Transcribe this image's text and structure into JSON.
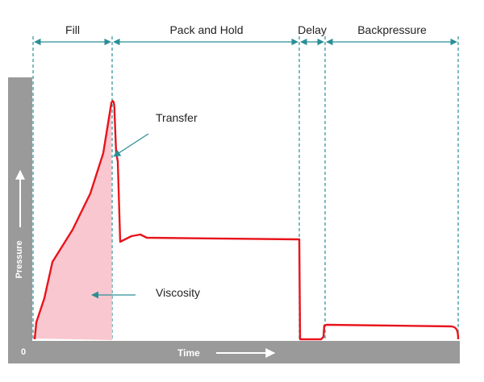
{
  "phases": [
    {
      "id": "fill",
      "label": "Fill"
    },
    {
      "id": "pack",
      "label": "Pack and Hold"
    },
    {
      "id": "delay",
      "label": "Delay"
    },
    {
      "id": "backpressure",
      "label": "Backpressure"
    }
  ],
  "axes": {
    "y_label": "Pressure",
    "x_label": "Time",
    "origin_label": "0"
  },
  "annotations": {
    "transfer": "Transfer",
    "viscosity": "Viscosity"
  },
  "colors": {
    "curve": "#e8141c",
    "fill_area": "#f9c7cf",
    "axis_bar": "#9a9a9a",
    "guide": "#2a8f96",
    "text": "#222222",
    "axis_text": "#ffffff"
  }
}
